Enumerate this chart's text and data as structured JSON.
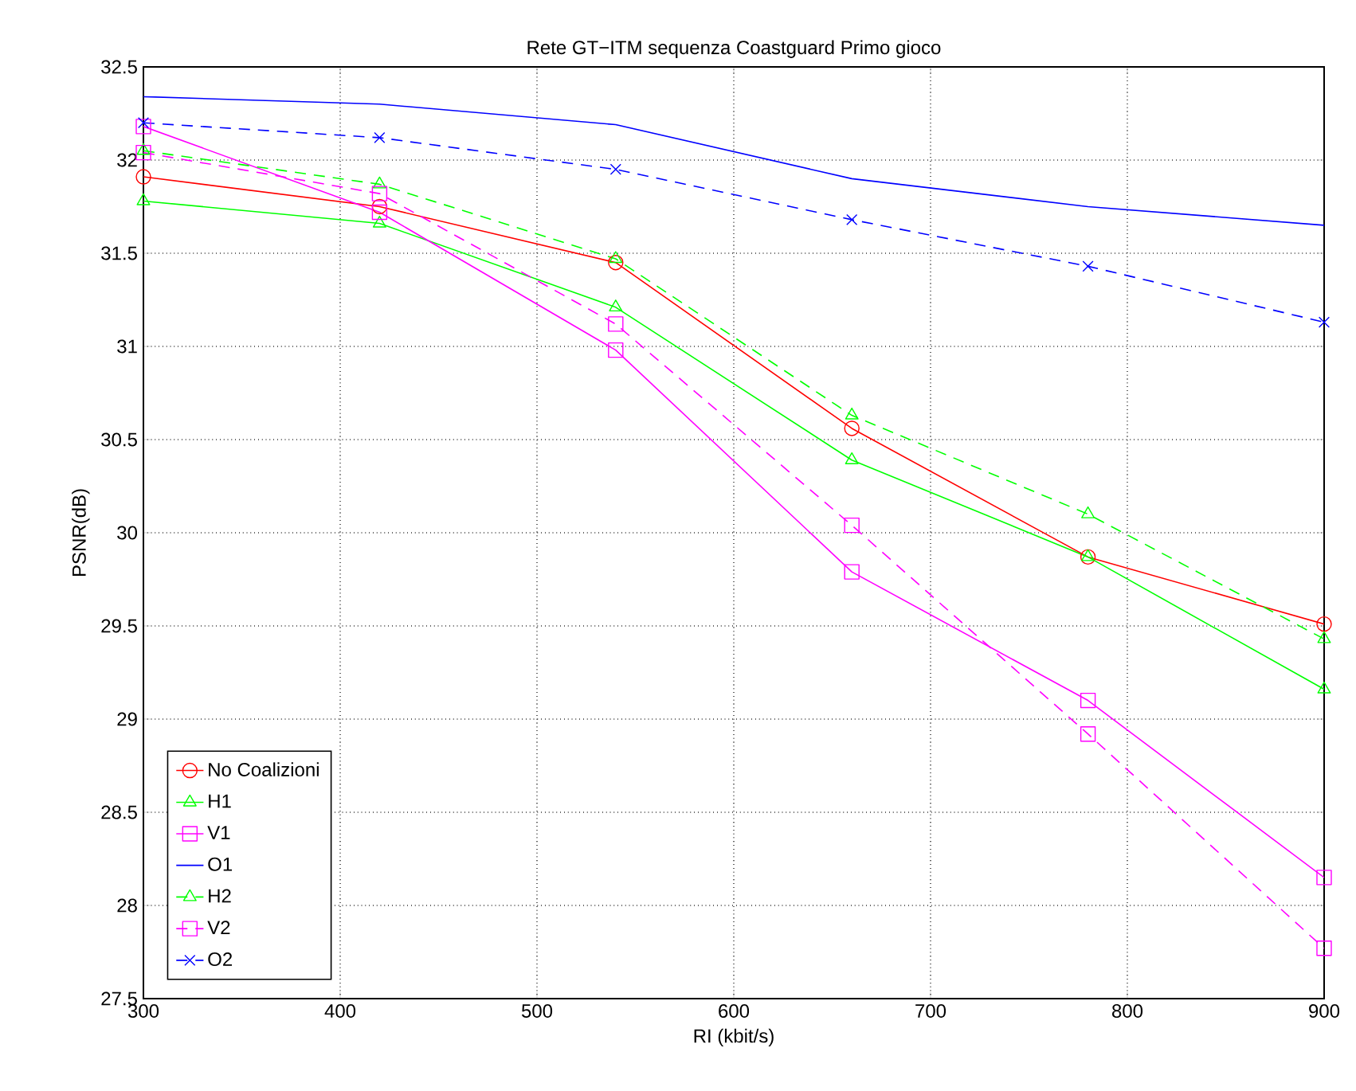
{
  "chart_data": {
    "type": "line",
    "title": "Rete GT−ITM sequenza Coastguard Primo gioco",
    "xlabel": "RI (kbit/s)",
    "ylabel": "PSNR(dB)",
    "x": [
      300,
      420,
      540,
      660,
      780,
      900
    ],
    "xlim": [
      300,
      900
    ],
    "xticks": [
      300,
      400,
      500,
      600,
      700,
      800,
      900
    ],
    "ylim": [
      27.5,
      32.5
    ],
    "yticks": [
      27.5,
      28,
      28.5,
      29,
      29.5,
      30,
      30.5,
      31,
      31.5,
      32,
      32.5
    ],
    "grid": true,
    "legend": "bottom left",
    "series": [
      {
        "name": "No Coalizioni",
        "color": "#ff0000",
        "marker": "circle",
        "line_style": "solid",
        "values": [
          31.91,
          31.75,
          31.45,
          30.56,
          29.87,
          29.51
        ]
      },
      {
        "name": "H1",
        "color": "#00ff00",
        "marker": "triangle",
        "line_style": "solid",
        "values": [
          31.78,
          31.66,
          31.21,
          30.39,
          29.87,
          29.16
        ]
      },
      {
        "name": "V1",
        "color": "#ff00ff",
        "marker": "square",
        "line_style": "solid",
        "values": [
          32.18,
          31.72,
          30.98,
          29.79,
          29.1,
          28.15
        ]
      },
      {
        "name": "O1",
        "color": "#0000ff",
        "marker": "none",
        "line_style": "solid",
        "values": [
          32.34,
          32.3,
          32.19,
          31.9,
          31.75,
          31.65
        ]
      },
      {
        "name": "H2",
        "color": "#00ff00",
        "marker": "triangle",
        "line_style": "dashed",
        "values": [
          32.05,
          31.87,
          31.47,
          30.63,
          30.1,
          29.43
        ]
      },
      {
        "name": "V2",
        "color": "#ff00ff",
        "marker": "square",
        "line_style": "dashed",
        "values": [
          32.04,
          31.82,
          31.12,
          30.04,
          28.92,
          27.77
        ]
      },
      {
        "name": "O2",
        "color": "#0000ff",
        "marker": "cross",
        "line_style": "dashed",
        "values": [
          32.2,
          32.12,
          31.95,
          31.68,
          31.43,
          31.13
        ]
      }
    ]
  }
}
